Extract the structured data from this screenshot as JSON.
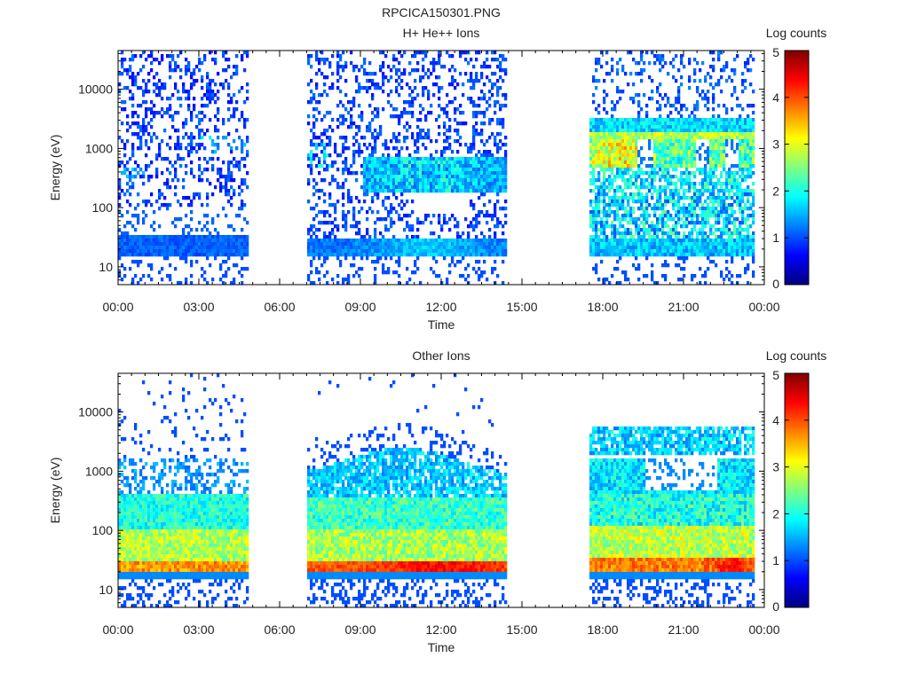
{
  "figure_title": "RPCICA150301.PNG",
  "chart_data": [
    {
      "type": "heatmap",
      "title": "H+ He++ Ions",
      "xlabel": "Time",
      "ylabel": "Energy (eV)",
      "x_ticks": [
        "00:00",
        "03:00",
        "06:00",
        "09:00",
        "12:00",
        "15:00",
        "18:00",
        "21:00",
        "00:00"
      ],
      "x_range_hours": [
        0,
        24
      ],
      "y_scale": "log",
      "y_range": [
        5,
        45000
      ],
      "y_ticks": [
        {
          "value": 10,
          "label": "10"
        },
        {
          "value": 100,
          "label": "100"
        },
        {
          "value": 1000,
          "label": "1000"
        },
        {
          "value": 10000,
          "label": "10000"
        }
      ],
      "data_gaps_hours": [
        [
          4.8,
          7.0
        ],
        [
          14.4,
          17.5
        ]
      ],
      "colorbar": {
        "label": "Log counts",
        "range": [
          0,
          5
        ],
        "ticks": [
          "0",
          "1",
          "2",
          "3",
          "4",
          "5"
        ]
      }
    },
    {
      "type": "heatmap",
      "title": "Other Ions",
      "xlabel": "Time",
      "ylabel": "Energy (eV)",
      "x_ticks": [
        "00:00",
        "03:00",
        "06:00",
        "09:00",
        "12:00",
        "15:00",
        "18:00",
        "21:00",
        "00:00"
      ],
      "x_range_hours": [
        0,
        24
      ],
      "y_scale": "log",
      "y_range": [
        5,
        45000
      ],
      "y_ticks": [
        {
          "value": 10,
          "label": "10"
        },
        {
          "value": 100,
          "label": "100"
        },
        {
          "value": 1000,
          "label": "1000"
        },
        {
          "value": 10000,
          "label": "10000"
        }
      ],
      "data_gaps_hours": [
        [
          4.8,
          7.0
        ],
        [
          14.4,
          17.5
        ]
      ],
      "colorbar": {
        "label": "Log counts",
        "range": [
          0,
          5
        ],
        "ticks": [
          "0",
          "1",
          "2",
          "3",
          "4",
          "5"
        ]
      }
    }
  ]
}
